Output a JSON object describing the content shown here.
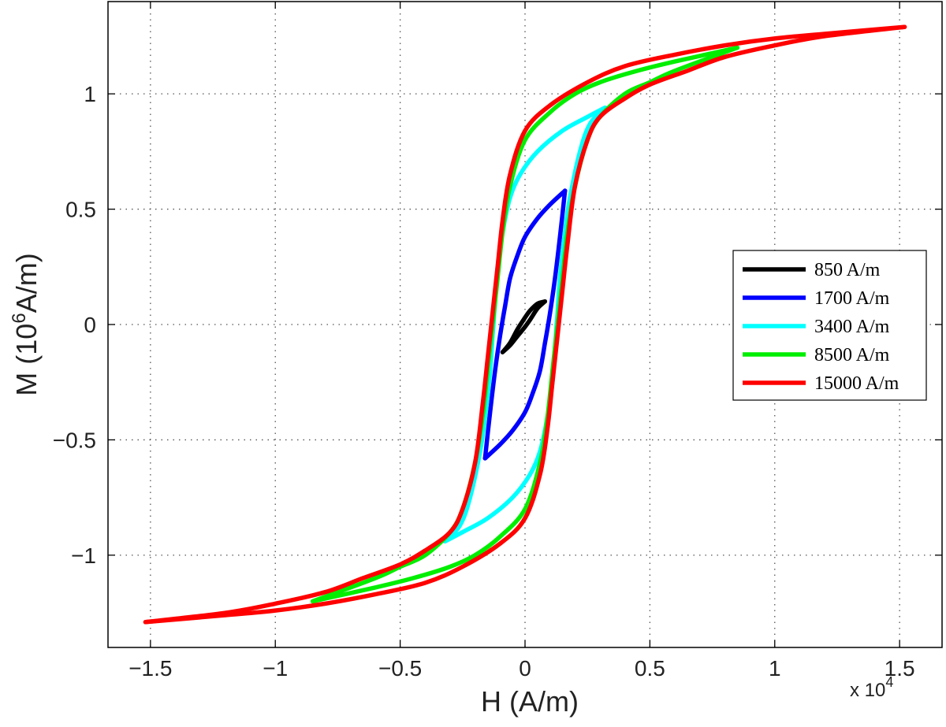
{
  "chart_data": {
    "type": "line",
    "title": "",
    "xlabel": "H (A/m)",
    "ylabel": "M (10^6A/m)",
    "x_multiplier": "x 10^4",
    "xlim": [
      -1.67,
      1.67
    ],
    "ylim": [
      -1.4,
      1.4
    ],
    "x_ticks": [
      -1.5,
      -1,
      -0.5,
      0,
      0.5,
      1,
      1.5
    ],
    "x_tick_labels": [
      "−1.5",
      "−1",
      "−0.5",
      "0",
      "0.5",
      "1",
      "1.5"
    ],
    "y_ticks": [
      -1,
      -0.5,
      0,
      0.5,
      1
    ],
    "y_tick_labels": [
      "−1",
      "−0.5",
      "0",
      "0.5",
      "1"
    ],
    "grid": true,
    "legend_position": "right",
    "series": [
      {
        "name": "850 A/m",
        "color": "#000000",
        "ascending": [
          [
            -0.09,
            -0.12
          ],
          [
            -0.06,
            -0.09
          ],
          [
            -0.03,
            -0.05
          ],
          [
            0.0,
            -0.01
          ],
          [
            0.02,
            0.02
          ],
          [
            0.05,
            0.07
          ],
          [
            0.08,
            0.1
          ]
        ],
        "descending": [
          [
            0.08,
            0.1
          ],
          [
            0.05,
            0.09
          ],
          [
            0.02,
            0.06
          ],
          [
            0.0,
            0.03
          ],
          [
            -0.03,
            -0.02
          ],
          [
            -0.06,
            -0.08
          ],
          [
            -0.09,
            -0.12
          ]
        ]
      },
      {
        "name": "1700 A/m",
        "color": "#0000ff",
        "ascending": [
          [
            -0.16,
            -0.58
          ],
          [
            -0.1,
            -0.52
          ],
          [
            -0.05,
            -0.46
          ],
          [
            0.0,
            -0.38
          ],
          [
            0.03,
            -0.3
          ],
          [
            0.06,
            -0.2
          ],
          [
            0.08,
            -0.08
          ],
          [
            0.1,
            0.05
          ],
          [
            0.12,
            0.2
          ],
          [
            0.14,
            0.38
          ],
          [
            0.16,
            0.58
          ]
        ],
        "descending": [
          [
            0.16,
            0.58
          ],
          [
            0.1,
            0.52
          ],
          [
            0.05,
            0.46
          ],
          [
            0.0,
            0.38
          ],
          [
            -0.03,
            0.3
          ],
          [
            -0.06,
            0.2
          ],
          [
            -0.08,
            0.08
          ],
          [
            -0.1,
            -0.05
          ],
          [
            -0.12,
            -0.2
          ],
          [
            -0.14,
            -0.38
          ],
          [
            -0.16,
            -0.58
          ]
        ]
      },
      {
        "name": "3400 A/m",
        "color": "#00ffff",
        "ascending": [
          [
            -0.32,
            -0.94
          ],
          [
            -0.25,
            -0.9
          ],
          [
            -0.15,
            -0.84
          ],
          [
            -0.05,
            -0.75
          ],
          [
            0.02,
            -0.65
          ],
          [
            0.06,
            -0.55
          ],
          [
            0.09,
            -0.4
          ],
          [
            0.11,
            -0.25
          ],
          [
            0.12,
            -0.1
          ],
          [
            0.13,
            0.05
          ],
          [
            0.14,
            0.2
          ],
          [
            0.16,
            0.4
          ],
          [
            0.18,
            0.55
          ],
          [
            0.22,
            0.75
          ],
          [
            0.26,
            0.87
          ],
          [
            0.32,
            0.94
          ]
        ],
        "descending": [
          [
            0.32,
            0.94
          ],
          [
            0.25,
            0.9
          ],
          [
            0.15,
            0.84
          ],
          [
            0.05,
            0.75
          ],
          [
            -0.02,
            0.65
          ],
          [
            -0.06,
            0.55
          ],
          [
            -0.09,
            0.4
          ],
          [
            -0.11,
            0.25
          ],
          [
            -0.12,
            0.1
          ],
          [
            -0.13,
            -0.05
          ],
          [
            -0.14,
            -0.2
          ],
          [
            -0.16,
            -0.4
          ],
          [
            -0.18,
            -0.55
          ],
          [
            -0.22,
            -0.75
          ],
          [
            -0.26,
            -0.87
          ],
          [
            -0.32,
            -0.94
          ]
        ]
      },
      {
        "name": "8500 A/m",
        "color": "#00ee00",
        "ascending": [
          [
            -0.85,
            -1.2
          ],
          [
            -0.6,
            -1.14
          ],
          [
            -0.45,
            -1.1
          ],
          [
            -0.3,
            -1.05
          ],
          [
            -0.2,
            -1.0
          ],
          [
            -0.1,
            -0.92
          ],
          [
            0.0,
            -0.8
          ],
          [
            0.06,
            -0.6
          ],
          [
            0.09,
            -0.4
          ],
          [
            0.11,
            -0.2
          ],
          [
            0.13,
            0.0
          ],
          [
            0.15,
            0.2
          ],
          [
            0.17,
            0.4
          ],
          [
            0.2,
            0.6
          ],
          [
            0.25,
            0.8
          ],
          [
            0.3,
            0.9
          ],
          [
            0.4,
            1.0
          ],
          [
            0.5,
            1.05
          ],
          [
            0.6,
            1.1
          ],
          [
            0.85,
            1.2
          ]
        ],
        "descending": [
          [
            0.85,
            1.2
          ],
          [
            0.6,
            1.14
          ],
          [
            0.45,
            1.1
          ],
          [
            0.3,
            1.05
          ],
          [
            0.2,
            1.0
          ],
          [
            0.1,
            0.92
          ],
          [
            0.0,
            0.8
          ],
          [
            -0.06,
            0.6
          ],
          [
            -0.09,
            0.4
          ],
          [
            -0.11,
            0.2
          ],
          [
            -0.13,
            0.0
          ],
          [
            -0.15,
            -0.2
          ],
          [
            -0.17,
            -0.4
          ],
          [
            -0.2,
            -0.6
          ],
          [
            -0.25,
            -0.8
          ],
          [
            -0.3,
            -0.9
          ],
          [
            -0.4,
            -1.0
          ],
          [
            -0.5,
            -1.05
          ],
          [
            -0.6,
            -1.1
          ],
          [
            -0.85,
            -1.2
          ]
        ]
      },
      {
        "name": "15000 A/m",
        "color": "#ff0000",
        "ascending": [
          [
            -1.52,
            -1.29
          ],
          [
            -1.2,
            -1.26
          ],
          [
            -1.0,
            -1.24
          ],
          [
            -0.8,
            -1.21
          ],
          [
            -0.6,
            -1.17
          ],
          [
            -0.4,
            -1.12
          ],
          [
            -0.25,
            -1.05
          ],
          [
            -0.1,
            -0.95
          ],
          [
            0.0,
            -0.84
          ],
          [
            0.06,
            -0.65
          ],
          [
            0.09,
            -0.45
          ],
          [
            0.11,
            -0.25
          ],
          [
            0.13,
            -0.05
          ],
          [
            0.15,
            0.15
          ],
          [
            0.17,
            0.35
          ],
          [
            0.2,
            0.6
          ],
          [
            0.25,
            0.8
          ],
          [
            0.3,
            0.9
          ],
          [
            0.4,
            0.98
          ],
          [
            0.5,
            1.04
          ],
          [
            0.65,
            1.1
          ],
          [
            0.8,
            1.16
          ],
          [
            1.0,
            1.21
          ],
          [
            1.2,
            1.25
          ],
          [
            1.52,
            1.29
          ]
        ],
        "descending": [
          [
            1.52,
            1.29
          ],
          [
            1.2,
            1.26
          ],
          [
            1.0,
            1.24
          ],
          [
            0.8,
            1.21
          ],
          [
            0.6,
            1.17
          ],
          [
            0.4,
            1.12
          ],
          [
            0.25,
            1.05
          ],
          [
            0.1,
            0.95
          ],
          [
            0.0,
            0.84
          ],
          [
            -0.06,
            0.65
          ],
          [
            -0.09,
            0.45
          ],
          [
            -0.11,
            0.25
          ],
          [
            -0.13,
            0.05
          ],
          [
            -0.15,
            -0.15
          ],
          [
            -0.17,
            -0.35
          ],
          [
            -0.2,
            -0.6
          ],
          [
            -0.25,
            -0.8
          ],
          [
            -0.3,
            -0.9
          ],
          [
            -0.4,
            -0.98
          ],
          [
            -0.5,
            -1.04
          ],
          [
            -0.65,
            -1.1
          ],
          [
            -0.8,
            -1.16
          ],
          [
            -1.0,
            -1.21
          ],
          [
            -1.2,
            -1.25
          ],
          [
            -1.52,
            -1.29
          ]
        ]
      }
    ]
  }
}
